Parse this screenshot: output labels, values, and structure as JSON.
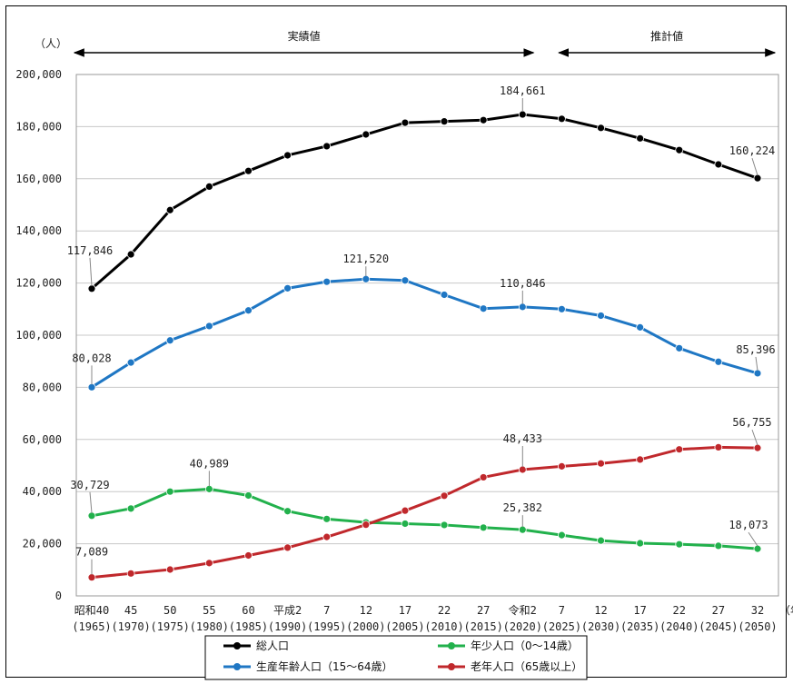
{
  "chart_data": {
    "type": "line",
    "ylabel": "（人）",
    "xunit": "（年）",
    "ylim": [
      0,
      200000
    ],
    "yticks": [
      "0",
      "20,000",
      "40,000",
      "60,000",
      "80,000",
      "100,000",
      "120,000",
      "140,000",
      "160,000",
      "180,000",
      "200,000"
    ],
    "grid": true,
    "legend_position": "bottom",
    "categories": [
      {
        "top": "昭和40",
        "bottom": "(1965)"
      },
      {
        "top": "45",
        "bottom": "(1970)"
      },
      {
        "top": "50",
        "bottom": "(1975)"
      },
      {
        "top": "55",
        "bottom": "(1980)"
      },
      {
        "top": "60",
        "bottom": "(1985)"
      },
      {
        "top": "平成2",
        "bottom": "(1990)"
      },
      {
        "top": "7",
        "bottom": "(1995)"
      },
      {
        "top": "12",
        "bottom": "(2000)"
      },
      {
        "top": "17",
        "bottom": "(2005)"
      },
      {
        "top": "22",
        "bottom": "(2010)"
      },
      {
        "top": "27",
        "bottom": "(2015)"
      },
      {
        "top": "令和2",
        "bottom": "(2020)"
      },
      {
        "top": "7",
        "bottom": "(2025)"
      },
      {
        "top": "12",
        "bottom": "(2030)"
      },
      {
        "top": "17",
        "bottom": "(2035)"
      },
      {
        "top": "22",
        "bottom": "(2040)"
      },
      {
        "top": "27",
        "bottom": "(2045)"
      },
      {
        "top": "32",
        "bottom": "(2050)"
      }
    ],
    "periods": [
      {
        "label": "実績値",
        "from": 0,
        "to": 11
      },
      {
        "label": "推計値",
        "from": 11,
        "to": 17
      }
    ],
    "series": [
      {
        "name": "総人口",
        "color": "#000000",
        "values": [
          117846,
          131000,
          148000,
          157000,
          163000,
          169000,
          172500,
          177000,
          181500,
          182000,
          182500,
          184661,
          183000,
          179500,
          175500,
          171000,
          165500,
          160224
        ],
        "labels": [
          {
            "index": 0,
            "text": "117,846"
          },
          {
            "index": 11,
            "text": "184,661"
          },
          {
            "index": 17,
            "text": "160,224"
          }
        ]
      },
      {
        "name": "生産年齢人口（15～64歳）",
        "color": "#1f77c4",
        "values": [
          80028,
          89500,
          98000,
          103500,
          109500,
          118000,
          120500,
          121520,
          121000,
          115500,
          110200,
          110846,
          110000,
          107500,
          103000,
          95000,
          89800,
          85396
        ],
        "labels": [
          {
            "index": 0,
            "text": "80,028"
          },
          {
            "index": 7,
            "text": "121,520"
          },
          {
            "index": 11,
            "text": "110,846"
          },
          {
            "index": 17,
            "text": "85,396"
          }
        ]
      },
      {
        "name": "年少人口（0～14歳）",
        "color": "#22b14c",
        "values": [
          30729,
          33500,
          40000,
          40989,
          38500,
          32500,
          29500,
          28200,
          27700,
          27200,
          26200,
          25382,
          23300,
          21200,
          20200,
          19800,
          19200,
          18073
        ],
        "labels": [
          {
            "index": 0,
            "text": "30,729"
          },
          {
            "index": 3,
            "text": "40,989"
          },
          {
            "index": 11,
            "text": "25,382"
          },
          {
            "index": 17,
            "text": "18,073"
          }
        ]
      },
      {
        "name": "老年人口（65歳以上）",
        "color": "#c0282c",
        "values": [
          7089,
          8600,
          10100,
          12600,
          15500,
          18500,
          22600,
          27300,
          32700,
          38400,
          45500,
          48433,
          49700,
          50800,
          52300,
          56200,
          57000,
          56755
        ],
        "labels": [
          {
            "index": 0,
            "text": "7,089"
          },
          {
            "index": 11,
            "text": "48,433"
          },
          {
            "index": 17,
            "text": "56,755"
          }
        ]
      }
    ],
    "legend_order": [
      0,
      2,
      1,
      3
    ]
  }
}
